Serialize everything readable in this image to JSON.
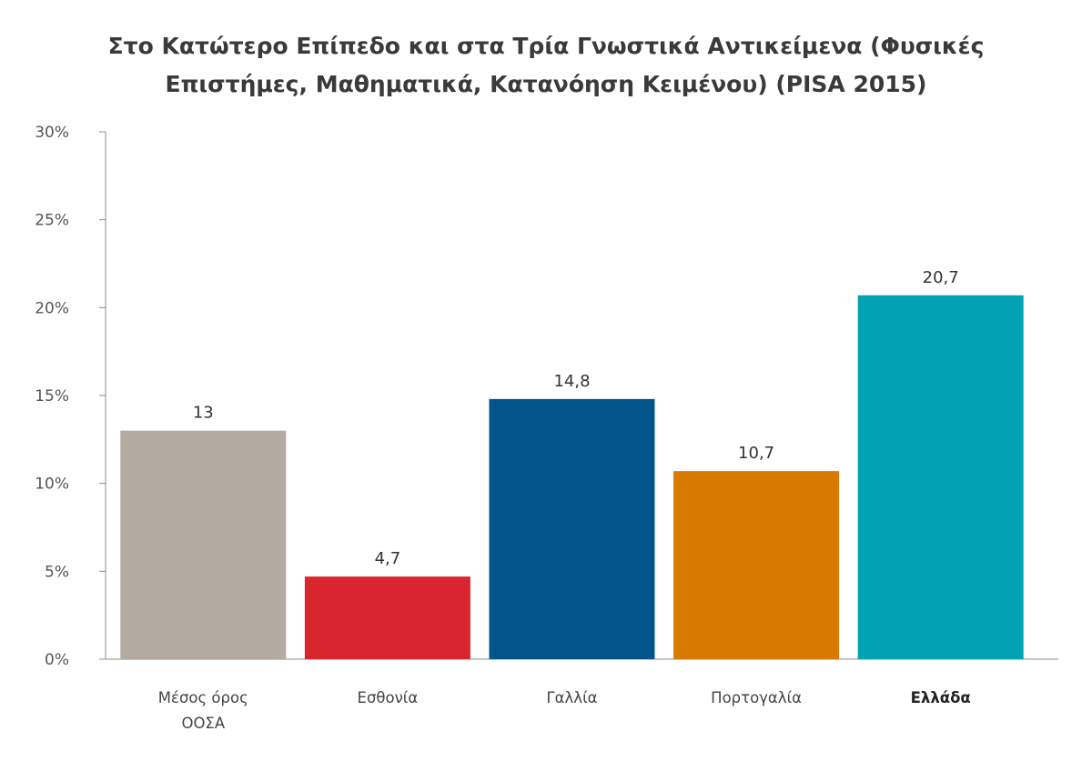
{
  "chart_data": {
    "type": "bar",
    "title_lines": [
      "Στο Κατώτερο Επίπεδο και στα Τρία Γνωστικά Αντικείμενα (Φυσικές",
      "Επιστήμες, Μαθηματικά, Κατανόηση Κειμένου) (PISA 2015)"
    ],
    "categories": [
      [
        "Μέσος όρος",
        "ΟΟΣΑ"
      ],
      [
        "Εσθονία"
      ],
      [
        "Γαλλία"
      ],
      [
        "Πορτογαλία"
      ],
      [
        "Ελλάδα"
      ]
    ],
    "values": [
      13,
      4.7,
      14.8,
      10.7,
      20.7
    ],
    "value_labels": [
      "13",
      "4,7",
      "14,8",
      "10,7",
      "20,7"
    ],
    "colors": [
      "#b3aba2",
      "#d9262e",
      "#04548c",
      "#d87a00",
      "#00a3b2"
    ],
    "bold_category_index": 4,
    "ylim": [
      0,
      30
    ],
    "yticks": [
      0,
      5,
      10,
      15,
      20,
      25,
      30
    ],
    "ytick_labels": [
      "0%",
      "5%",
      "10%",
      "15%",
      "20%",
      "25%",
      "30%"
    ],
    "grid": false,
    "legend": "none"
  }
}
